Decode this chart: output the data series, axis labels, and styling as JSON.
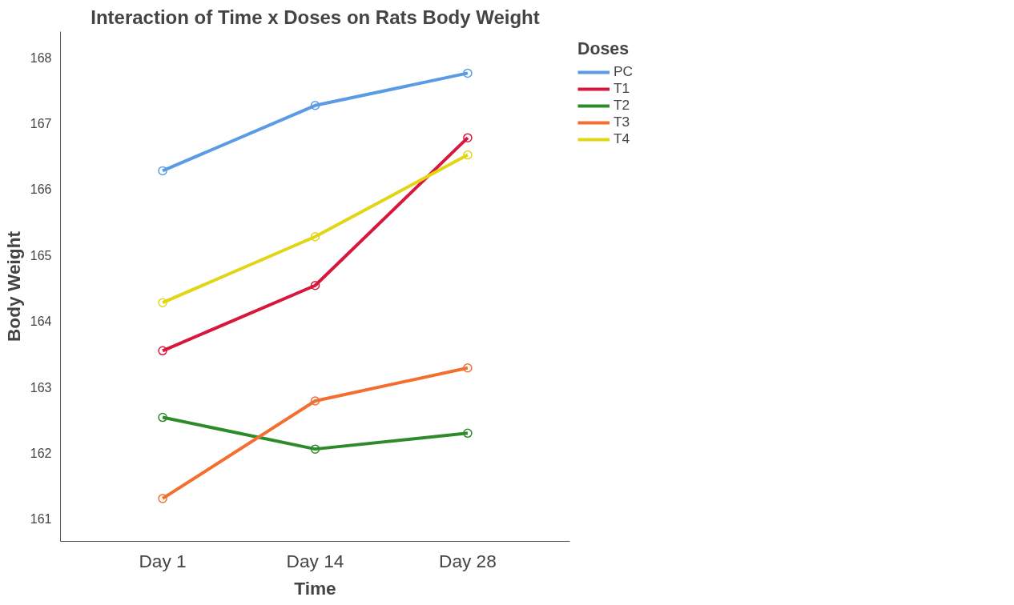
{
  "chart_data": {
    "type": "line",
    "title": "Interaction of Time x Doses on Rats Body Weight",
    "xlabel": "Time",
    "ylabel": "Body Weight",
    "legend_title": "Doses",
    "categories": [
      "Day 1",
      "Day 14",
      "Day 28"
    ],
    "series": [
      {
        "name": "PC",
        "color": "#5b9be6",
        "values": [
          166.28,
          167.27,
          167.76
        ]
      },
      {
        "name": "T1",
        "color": "#d8173c",
        "values": [
          163.55,
          164.54,
          166.78
        ]
      },
      {
        "name": "T2",
        "color": "#2e8b2a",
        "values": [
          162.54,
          162.06,
          162.3
        ]
      },
      {
        "name": "T3",
        "color": "#f26f30",
        "values": [
          161.31,
          162.79,
          163.29
        ]
      },
      {
        "name": "T4",
        "color": "#e2d514",
        "values": [
          164.28,
          165.28,
          166.52
        ]
      }
    ],
    "ylim": [
      160.66,
      168.39
    ],
    "yticks": [
      161,
      162,
      163,
      164,
      165,
      166,
      167,
      168
    ],
    "grid": false,
    "legend": "top right",
    "marker": "circle",
    "line_style": "solid"
  }
}
